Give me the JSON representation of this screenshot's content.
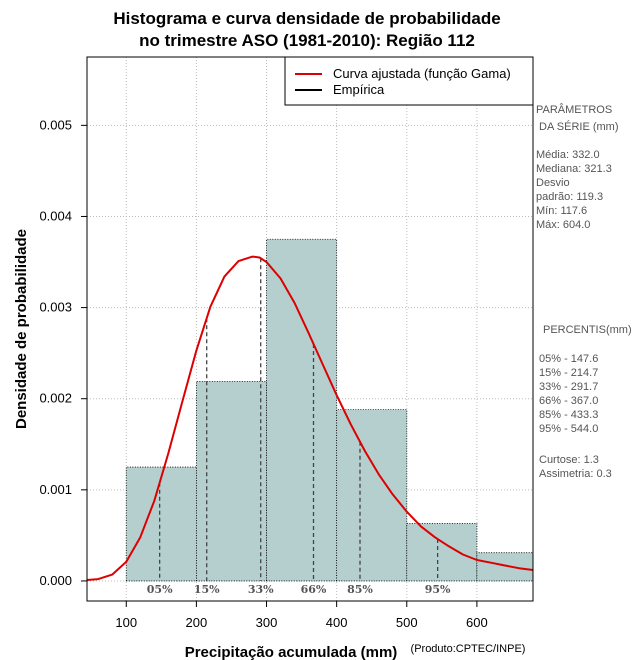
{
  "chart_data": {
    "type": "bar",
    "title_line1": "Histograma e curva densidade de probabilidade",
    "title_line2": "no trimestre ASO (1981-2010): Região 112",
    "xlabel": "Precipitação acumulada (mm)",
    "ylabel": "Densidade de probabilidade",
    "credit": "(Produto:CPTEC/INPE)",
    "xlim": [
      44,
      680
    ],
    "ylim": [
      -0.00022,
      0.00575
    ],
    "x_ticks": [
      100,
      200,
      300,
      400,
      500,
      600
    ],
    "x_tick_labels": [
      "100",
      "200",
      "300",
      "400",
      "500",
      "600"
    ],
    "y_ticks": [
      0,
      0.001,
      0.002,
      0.003,
      0.004,
      0.005
    ],
    "y_tick_labels": [
      "0.000",
      "0.001",
      "0.002",
      "0.003",
      "0.004",
      "0.005"
    ],
    "grid": true,
    "bins": [
      {
        "start": 100,
        "end": 200,
        "density": 0.00125
      },
      {
        "start": 200,
        "end": 300,
        "density": 0.00219
      },
      {
        "start": 300,
        "end": 400,
        "density": 0.00375
      },
      {
        "start": 400,
        "end": 500,
        "density": 0.00188
      },
      {
        "start": 500,
        "end": 600,
        "density": 0.00063
      },
      {
        "start": 600,
        "end": 700,
        "density": 0.00031
      }
    ],
    "fitted_curve": {
      "name": "Curva ajustada (função Gama)",
      "color": "#dd0000",
      "x": [
        44,
        60,
        80,
        100,
        120,
        140,
        160,
        180,
        200,
        220,
        240,
        260,
        280,
        290,
        300,
        320,
        340,
        360,
        380,
        400,
        420,
        440,
        460,
        480,
        500,
        520,
        540,
        560,
        580,
        600,
        620,
        640,
        660,
        680
      ],
      "y": [
        1e-05,
        2e-05,
        7e-05,
        0.00021,
        0.00048,
        0.00088,
        0.0014,
        0.00197,
        0.00253,
        0.00301,
        0.00334,
        0.00351,
        0.00356,
        0.00355,
        0.0035,
        0.00332,
        0.00305,
        0.00272,
        0.00238,
        0.00204,
        0.00172,
        0.00143,
        0.00117,
        0.00095,
        0.00076,
        0.0006,
        0.00048,
        0.00038,
        0.00029,
        0.00023,
        0.0002,
        0.00017,
        0.00014,
        0.00012
      ]
    },
    "empirical": {
      "name": "Empírica",
      "color": "#000000"
    },
    "bar_color": "#b5cfcf",
    "percentiles": [
      {
        "label": "05%",
        "value": 147.6
      },
      {
        "label": "15%",
        "value": 214.7
      },
      {
        "label": "33%",
        "value": 291.7
      },
      {
        "label": "66%",
        "value": 367.0
      },
      {
        "label": "85%",
        "value": 433.3
      },
      {
        "label": "95%",
        "value": 544.0
      }
    ],
    "legend_position": "top-right"
  },
  "side_panel": {
    "params_heading": [
      "PARÂMETROS",
      " DA SÉRIE (mm)"
    ],
    "params": [
      "Média:  332.0",
      "Mediana:  321.3",
      "Desvio",
      "padrão:  119.3",
      "Mín:  117.6",
      "Máx:  604.0"
    ],
    "percentis_heading": "PERCENTIS(mm)",
    "percentis": [
      "05% -  147.6",
      "15% -  214.7",
      "33% -  291.7",
      "66% -  367.0",
      "85% -  433.3",
      "95% -  544.0"
    ],
    "extra": [
      "Curtose:  1.3",
      "Assimetria:  0.3"
    ]
  }
}
